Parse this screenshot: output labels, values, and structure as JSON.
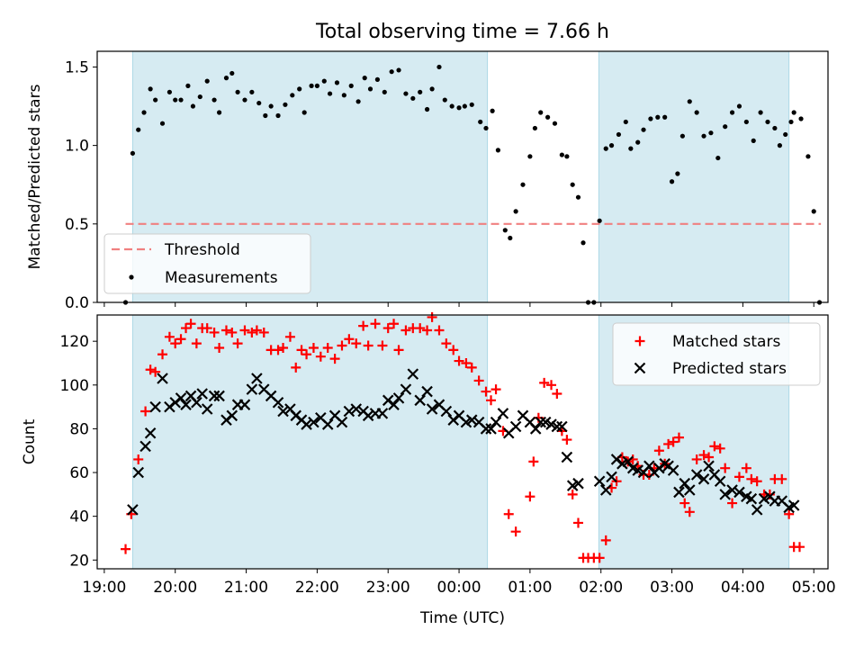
{
  "title": "Total observing time = 7.66 h",
  "colors": {
    "night_band": "#add8e6",
    "threshold": "#f08080",
    "matched": "#ff0000",
    "predicted": "#000000",
    "measurement": "#000000"
  },
  "chart_data": [
    {
      "type": "scatter",
      "ylabel": "Matched/Predicted stars",
      "ylim": [
        0,
        1.6
      ],
      "yticks": [
        "0.0",
        "0.5",
        "1.0",
        "1.5"
      ],
      "xlim": [
        18.9,
        29.2
      ],
      "shaded_intervals": [
        [
          19.4,
          24.4
        ],
        [
          25.97,
          28.65
        ]
      ],
      "threshold": 0.5,
      "legend": {
        "position": "lower-left",
        "entries": [
          "Threshold",
          "Measurements"
        ]
      },
      "series": [
        {
          "name": "Measurements",
          "x": [
            19.3,
            19.4,
            19.48,
            19.56,
            19.65,
            19.72,
            19.82,
            19.92,
            20.0,
            20.08,
            20.18,
            20.25,
            20.35,
            20.45,
            20.55,
            20.62,
            20.72,
            20.8,
            20.88,
            20.98,
            21.08,
            21.18,
            21.27,
            21.35,
            21.45,
            21.55,
            21.65,
            21.75,
            21.82,
            21.92,
            22.0,
            22.1,
            22.18,
            22.28,
            22.38,
            22.48,
            22.58,
            22.67,
            22.75,
            22.85,
            22.95,
            23.05,
            23.15,
            23.25,
            23.35,
            23.45,
            23.55,
            23.62,
            23.72,
            23.8,
            23.9,
            24.0,
            24.08,
            24.18,
            24.3,
            24.38,
            24.47,
            24.55,
            24.65,
            24.72,
            24.8,
            24.9,
            25.0,
            25.07,
            25.15,
            25.25,
            25.35,
            25.45,
            25.52,
            25.6,
            25.68,
            25.75,
            25.82,
            25.9,
            25.98,
            26.07,
            26.15,
            26.25,
            26.35,
            26.42,
            26.52,
            26.6,
            26.7,
            26.8,
            26.9,
            27.0,
            27.08,
            27.15,
            27.25,
            27.35,
            27.45,
            27.55,
            27.65,
            27.75,
            27.85,
            27.95,
            28.05,
            28.15,
            28.25,
            28.35,
            28.45,
            28.52,
            28.6,
            28.68
          ],
          "y": [
            0.0,
            0.95,
            1.1,
            1.21,
            1.36,
            1.29,
            1.14,
            1.34,
            1.29,
            1.29,
            1.38,
            1.25,
            1.31,
            1.41,
            1.29,
            1.21,
            1.43,
            1.46,
            1.34,
            1.29,
            1.34,
            1.27,
            1.19,
            1.25,
            1.19,
            1.26,
            1.32,
            1.36,
            1.21,
            1.38,
            1.38,
            1.41,
            1.33,
            1.4,
            1.32,
            1.38,
            1.28,
            1.43,
            1.36,
            1.42,
            1.34,
            1.47,
            1.48,
            1.33,
            1.3,
            1.34,
            1.23,
            1.36,
            1.5,
            1.29,
            1.25,
            1.24,
            1.25,
            1.26,
            1.15,
            1.11,
            1.22,
            0.97,
            0.46,
            0.41,
            0.58,
            0.75,
            0.93,
            1.11,
            1.21,
            1.18,
            1.14,
            0.94,
            0.93,
            0.75,
            0.67,
            0.38,
            0.0,
            0.0,
            0.52,
            0.98,
            1.0,
            1.07,
            1.15,
            0.98,
            1.02,
            1.1,
            1.17,
            1.18,
            1.18,
            0.77,
            0.82,
            1.06,
            1.28,
            1.21,
            1.06,
            1.08,
            0.92,
            1.12,
            1.21,
            1.25,
            1.15,
            1.03,
            1.21,
            1.15,
            1.11,
            1.0,
            1.07,
            1.15
          ]
        },
        {
          "name": "Measurements",
          "x": [
            28.72,
            28.82,
            28.92,
            29.0,
            29.08
          ],
          "y": [
            1.21,
            1.17,
            0.93,
            0.58,
            0.0
          ]
        }
      ]
    },
    {
      "type": "scatter",
      "xlabel": "Time (UTC)",
      "ylabel": "Count",
      "ylim": [
        16,
        132
      ],
      "yticks": [
        20,
        40,
        60,
        80,
        100,
        120
      ],
      "xlim": [
        18.9,
        29.2
      ],
      "xticks": [
        "19:00",
        "20:00",
        "21:00",
        "22:00",
        "23:00",
        "00:00",
        "01:00",
        "02:00",
        "03:00",
        "04:00",
        "05:00"
      ],
      "shaded_intervals": [
        [
          19.4,
          24.4
        ],
        [
          25.97,
          28.65
        ]
      ],
      "legend": {
        "position": "upper-right",
        "entries": [
          "Matched stars",
          "Predicted stars"
        ]
      },
      "series": [
        {
          "name": "Matched stars",
          "x": [
            19.3,
            19.38,
            19.48,
            19.58,
            19.65,
            19.72,
            19.82,
            19.92,
            20.0,
            20.08,
            20.15,
            20.22,
            20.3,
            20.38,
            20.45,
            20.55,
            20.62,
            20.72,
            20.8,
            20.88,
            20.98,
            21.08,
            21.15,
            21.25,
            21.35,
            21.45,
            21.52,
            21.62,
            21.7,
            21.78,
            21.85,
            21.95,
            22.05,
            22.15,
            22.25,
            22.35,
            22.45,
            22.55,
            22.65,
            22.72,
            22.82,
            22.92,
            23.0,
            23.08,
            23.15,
            23.25,
            23.35,
            23.45,
            23.55,
            23.62,
            23.72,
            23.82,
            23.92,
            24.0,
            24.1,
            24.18,
            24.28,
            24.38,
            24.45,
            24.52,
            24.62,
            24.7,
            24.8,
            25.0,
            25.05,
            25.12,
            25.2,
            25.3,
            25.38,
            25.45,
            25.52,
            25.6,
            25.68,
            25.75,
            25.82,
            25.9,
            25.98,
            26.07,
            26.15,
            26.22,
            26.3,
            26.38,
            26.45,
            26.52,
            26.6,
            26.68,
            26.75,
            26.82,
            26.9,
            26.95,
            27.02,
            27.1,
            27.18,
            27.25,
            27.35,
            27.45,
            27.52,
            27.6,
            27.68,
            27.75,
            27.85,
            27.95,
            28.05,
            28.12,
            28.2,
            28.3,
            28.38,
            28.45,
            28.55,
            28.65,
            28.72,
            28.8
          ],
          "y": [
            25,
            41,
            66,
            88,
            107,
            106,
            114,
            122,
            119,
            121,
            126,
            128,
            119,
            126,
            126,
            124,
            117,
            125,
            124,
            119,
            125,
            124,
            125,
            124,
            116,
            116,
            117,
            122,
            108,
            116,
            114,
            117,
            113,
            117,
            112,
            118,
            121,
            119,
            127,
            118,
            128,
            118,
            126,
            128,
            116,
            125,
            126,
            126,
            125,
            131,
            125,
            119,
            116,
            111,
            110,
            108,
            102,
            97,
            93,
            98,
            79,
            41,
            33,
            49,
            65,
            85,
            101,
            100,
            96,
            79,
            75,
            50,
            37,
            21,
            21,
            21,
            21,
            29,
            53,
            56,
            67,
            65,
            66,
            63,
            59,
            59,
            62,
            70,
            64,
            73,
            74,
            76,
            46,
            42,
            66,
            68,
            67,
            72,
            71,
            62,
            46,
            58,
            62,
            57,
            56,
            50,
            50,
            57,
            57,
            41,
            26,
            26
          ]
        },
        {
          "name": "Predicted stars",
          "x": [
            19.4,
            19.48,
            19.58,
            19.65,
            19.72,
            19.82,
            19.92,
            20.0,
            20.08,
            20.15,
            20.22,
            20.3,
            20.38,
            20.45,
            20.55,
            20.62,
            20.72,
            20.8,
            20.88,
            20.98,
            21.08,
            21.15,
            21.25,
            21.35,
            21.45,
            21.52,
            21.62,
            21.7,
            21.78,
            21.85,
            21.95,
            22.05,
            22.15,
            22.25,
            22.35,
            22.45,
            22.55,
            22.65,
            22.72,
            22.82,
            22.92,
            23.0,
            23.08,
            23.15,
            23.25,
            23.35,
            23.45,
            23.55,
            23.62,
            23.72,
            23.82,
            23.92,
            24.0,
            24.1,
            24.18,
            24.28,
            24.38,
            24.45,
            24.52,
            24.62,
            24.7,
            24.8,
            24.9,
            25.0,
            25.08,
            25.15,
            25.22,
            25.3,
            25.38,
            25.45,
            25.52,
            25.6,
            25.68,
            25.98,
            26.07,
            26.15,
            26.22,
            26.3,
            26.38,
            26.45,
            26.52,
            26.6,
            26.68,
            26.75,
            26.82,
            26.9,
            26.95,
            27.02,
            27.1,
            27.18,
            27.25,
            27.35,
            27.45,
            27.52,
            27.6,
            27.68,
            27.75,
            27.85,
            27.95,
            28.05,
            28.12,
            28.2,
            28.3,
            28.38,
            28.45,
            28.55,
            28.65,
            28.72
          ],
          "y": [
            43,
            60,
            72,
            78,
            90,
            103,
            90,
            92,
            94,
            91,
            95,
            92,
            96,
            89,
            95,
            95,
            84,
            86,
            91,
            91,
            98,
            103,
            98,
            95,
            92,
            88,
            89,
            86,
            84,
            82,
            83,
            85,
            82,
            86,
            83,
            88,
            89,
            88,
            86,
            87,
            87,
            93,
            91,
            94,
            98,
            105,
            93,
            97,
            89,
            91,
            88,
            84,
            86,
            83,
            84,
            83,
            80,
            80,
            83,
            87,
            78,
            81,
            86,
            83,
            80,
            83,
            83,
            82,
            81,
            81,
            67,
            54,
            55,
            56,
            52,
            58,
            66,
            64,
            65,
            62,
            61,
            60,
            63,
            60,
            62,
            64,
            63,
            61,
            51,
            55,
            52,
            59,
            57,
            63,
            59,
            56,
            50,
            52,
            51,
            49,
            48,
            43,
            48,
            49,
            47,
            47,
            44,
            45
          ]
        }
      ]
    }
  ]
}
